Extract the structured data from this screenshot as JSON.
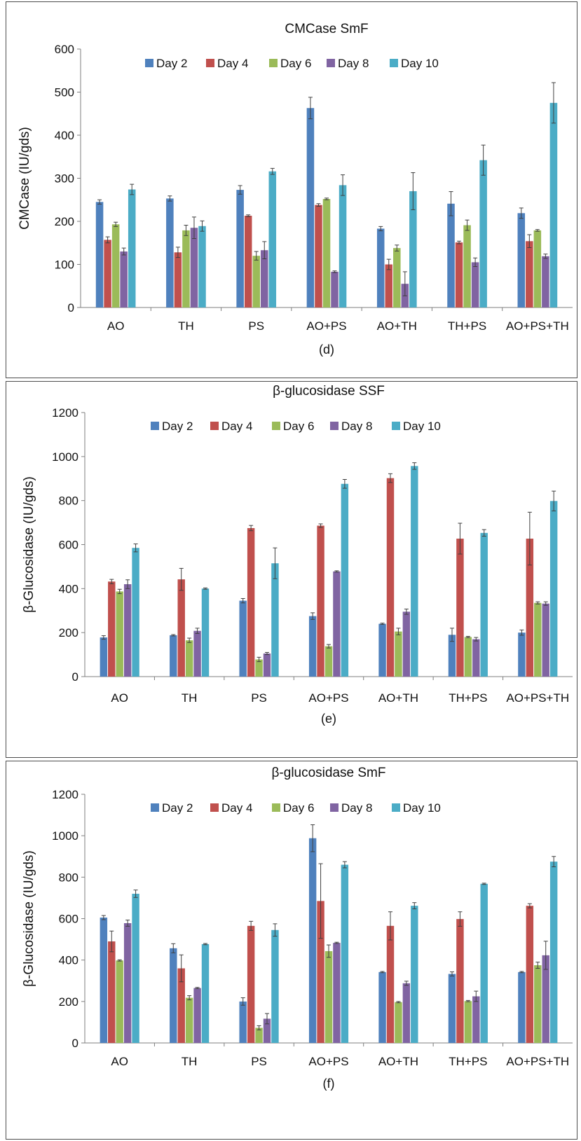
{
  "chart_data": [
    {
      "type": "bar",
      "panel_label": "(d)",
      "title": "CMCase SmF",
      "xlabel": "",
      "ylabel": "CMCase (IU/gds)",
      "ylim": [
        0,
        600
      ],
      "yticks": [
        0,
        100,
        200,
        300,
        400,
        500,
        600
      ],
      "grid": false,
      "legend_position": "top",
      "categories": [
        "AO",
        "TH",
        "PS",
        "AO+PS",
        "AO+TH",
        "TH+PS",
        "AO+PS+TH"
      ],
      "series": [
        {
          "name": "Day 2",
          "color": "#4F81BD",
          "values": [
            245,
            253,
            273,
            463,
            183,
            241,
            219
          ],
          "errors": [
            5,
            6,
            10,
            25,
            5,
            28,
            12
          ]
        },
        {
          "name": "Day 4",
          "color": "#C0504D",
          "values": [
            157,
            128,
            213,
            238,
            100,
            151,
            154
          ],
          "errors": [
            7,
            12,
            2,
            3,
            12,
            3,
            15
          ]
        },
        {
          "name": "Day 6",
          "color": "#9BBB59",
          "values": [
            193,
            179,
            120,
            252,
            138,
            191,
            179
          ],
          "errors": [
            5,
            12,
            10,
            2,
            7,
            12,
            2
          ]
        },
        {
          "name": "Day 8",
          "color": "#8064A2",
          "values": [
            130,
            185,
            133,
            83,
            55,
            105,
            119
          ],
          "errors": [
            8,
            25,
            20,
            2,
            28,
            10,
            5
          ]
        },
        {
          "name": "Day 10",
          "color": "#4BACC6",
          "values": [
            274,
            189,
            316,
            284,
            270,
            342,
            475
          ],
          "errors": [
            12,
            12,
            7,
            24,
            43,
            35,
            47
          ]
        }
      ]
    },
    {
      "type": "bar",
      "panel_label": "(e)",
      "title": "β-glucosidase SSF",
      "xlabel": "",
      "ylabel": "β-Glucosidase (IU/gds)",
      "ylim": [
        0,
        1200
      ],
      "yticks": [
        0,
        200,
        400,
        600,
        800,
        1000,
        1200
      ],
      "grid": false,
      "legend_position": "top",
      "categories": [
        "AO",
        "TH",
        "PS",
        "AO+PS",
        "AO+TH",
        "TH+PS",
        "AO+PS+TH"
      ],
      "series": [
        {
          "name": "Day 2",
          "color": "#4F81BD",
          "values": [
            178,
            188,
            345,
            275,
            240,
            190,
            200
          ],
          "errors": [
            8,
            3,
            10,
            15,
            3,
            30,
            12
          ]
        },
        {
          "name": "Day 4",
          "color": "#C0504D",
          "values": [
            432,
            442,
            675,
            686,
            902,
            627,
            627
          ],
          "errors": [
            10,
            50,
            12,
            8,
            20,
            70,
            120
          ]
        },
        {
          "name": "Day 6",
          "color": "#9BBB59",
          "values": [
            387,
            165,
            78,
            138,
            205,
            180,
            335
          ],
          "errors": [
            10,
            10,
            10,
            8,
            15,
            3,
            5
          ]
        },
        {
          "name": "Day 8",
          "color": "#8064A2",
          "values": [
            420,
            208,
            105,
            478,
            295,
            170,
            332
          ],
          "errors": [
            20,
            12,
            5,
            3,
            12,
            8,
            8
          ]
        },
        {
          "name": "Day 10",
          "color": "#4BACC6",
          "values": [
            585,
            400,
            515,
            876,
            957,
            653,
            798
          ],
          "errors": [
            18,
            3,
            70,
            20,
            15,
            15,
            45
          ]
        }
      ]
    },
    {
      "type": "bar",
      "panel_label": "(f)",
      "title": "β-glucosidase SmF",
      "xlabel": "",
      "ylabel": "β-Glucosidase (IU/gds)",
      "ylim": [
        0,
        1200
      ],
      "yticks": [
        0,
        200,
        400,
        600,
        800,
        1000,
        1200
      ],
      "grid": false,
      "legend_position": "top",
      "categories": [
        "AO",
        "TH",
        "PS",
        "AO+PS",
        "AO+TH",
        "TH+PS",
        "AO+PS+TH"
      ],
      "series": [
        {
          "name": "Day 2",
          "color": "#4F81BD",
          "values": [
            605,
            457,
            200,
            988,
            342,
            333,
            342
          ],
          "errors": [
            10,
            22,
            18,
            65,
            3,
            10,
            3
          ]
        },
        {
          "name": "Day 4",
          "color": "#C0504D",
          "values": [
            490,
            360,
            565,
            685,
            565,
            598,
            662
          ],
          "errors": [
            50,
            65,
            22,
            180,
            68,
            35,
            10
          ]
        },
        {
          "name": "Day 6",
          "color": "#9BBB59",
          "values": [
            398,
            218,
            73,
            443,
            197,
            202,
            375
          ],
          "errors": [
            3,
            10,
            10,
            30,
            3,
            3,
            15
          ]
        },
        {
          "name": "Day 8",
          "color": "#8064A2",
          "values": [
            578,
            265,
            117,
            483,
            288,
            225,
            423
          ],
          "errors": [
            15,
            3,
            25,
            3,
            10,
            25,
            68
          ]
        },
        {
          "name": "Day 10",
          "color": "#4BACC6",
          "values": [
            720,
            477,
            545,
            860,
            662,
            768,
            875
          ],
          "errors": [
            18,
            3,
            30,
            15,
            15,
            3,
            25
          ]
        }
      ]
    }
  ]
}
